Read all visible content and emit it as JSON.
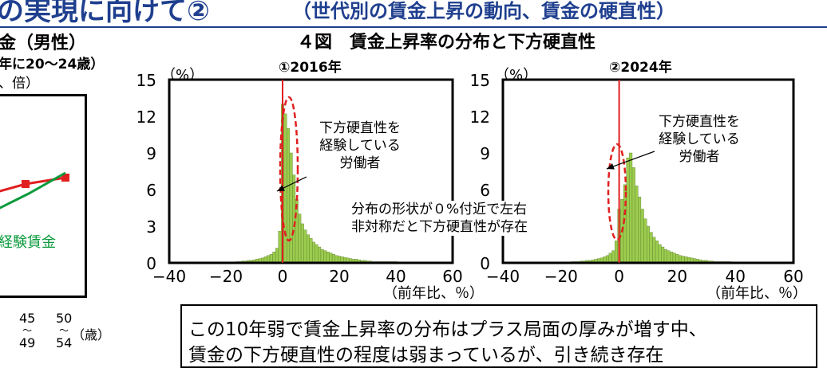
{
  "header": {
    "main_title": "の実現に向けて②",
    "sub_title": "（世代別の賃金上昇の動向、賃金の硬直性）"
  },
  "left_panel": {
    "title": "金（男性）",
    "note": "年に20～24歳）",
    "unit": "、倍）",
    "series_label": "経験賃金",
    "x_ticks": [
      {
        "top": "45",
        "mid": "～",
        "bottom": "49"
      },
      {
        "top": "50",
        "mid": "～",
        "bottom": "54"
      }
    ],
    "x_unit": "（歳）",
    "series": [
      {
        "color": "#e02020",
        "marker": "square"
      },
      {
        "color": "#0a9a3c",
        "marker": "none"
      }
    ]
  },
  "figure_title": "４図　賃金上昇率の分布と下方硬直性",
  "chart_data": [
    {
      "type": "bar",
      "title": "①2016年",
      "ylabel": "（%）",
      "xlabel": "（前年比、％）",
      "xlim": [
        -40,
        60
      ],
      "ylim": [
        0,
        15
      ],
      "x_ticks": [
        -40,
        -20,
        0,
        20,
        40,
        60
      ],
      "y_ticks": [
        0,
        3,
        6,
        9,
        12,
        15
      ],
      "bar_color": "#9ccc4e",
      "zero_line_color": "#e02020",
      "grid": false,
      "x": [
        -16,
        -15,
        -14,
        -13,
        -12,
        -11,
        -10,
        -9,
        -8,
        -7,
        -6,
        -5,
        -4,
        -3,
        -2,
        -1,
        0,
        1,
        2,
        3,
        4,
        5,
        6,
        7,
        8,
        9,
        10,
        11,
        12,
        13,
        14,
        15,
        16,
        17,
        18,
        19,
        20,
        21,
        22,
        23,
        24,
        25,
        26,
        27,
        28,
        29,
        30,
        31,
        32,
        33,
        34,
        35,
        36,
        37,
        38,
        39,
        40,
        41,
        42,
        43,
        44,
        45
      ],
      "values": [
        0.1,
        0.1,
        0.15,
        0.15,
        0.2,
        0.2,
        0.25,
        0.3,
        0.35,
        0.4,
        0.5,
        0.6,
        0.7,
        0.9,
        1.2,
        2.6,
        13.0,
        12.2,
        11.0,
        9.0,
        7.2,
        5.2,
        4.0,
        3.2,
        2.7,
        2.3,
        2.0,
        1.7,
        1.5,
        1.3,
        1.1,
        1.0,
        0.9,
        0.8,
        0.7,
        0.6,
        0.55,
        0.5,
        0.45,
        0.4,
        0.35,
        0.3,
        0.3,
        0.25,
        0.2,
        0.2,
        0.15,
        0.15,
        0.1,
        0.1,
        0.1,
        0.1,
        0.1,
        0.1,
        0.1,
        0.1,
        0.1,
        0.05,
        0.05,
        0.05,
        0.05,
        0.05
      ],
      "annotation": "下方硬直性を\n経験している\n労働者"
    },
    {
      "type": "bar",
      "title": "②2024年",
      "ylabel": "（%）",
      "xlabel": "（前年比、％）",
      "xlim": [
        -40,
        60
      ],
      "ylim": [
        0,
        15
      ],
      "x_ticks": [
        -40,
        -20,
        0,
        20,
        40,
        60
      ],
      "y_ticks": [
        0,
        3,
        6,
        9,
        12,
        15
      ],
      "bar_color": "#9ccc4e",
      "zero_line_color": "#e02020",
      "grid": false,
      "x": [
        -16,
        -15,
        -14,
        -13,
        -12,
        -11,
        -10,
        -9,
        -8,
        -7,
        -6,
        -5,
        -4,
        -3,
        -2,
        -1,
        0,
        1,
        2,
        3,
        4,
        5,
        6,
        7,
        8,
        9,
        10,
        11,
        12,
        13,
        14,
        15,
        16,
        17,
        18,
        19,
        20,
        21,
        22,
        23,
        24,
        25,
        26,
        27,
        28,
        29,
        30,
        31,
        32,
        33,
        34,
        35,
        36,
        37,
        38,
        39,
        40,
        41,
        42,
        43,
        44,
        45
      ],
      "values": [
        0.1,
        0.1,
        0.1,
        0.15,
        0.15,
        0.2,
        0.2,
        0.25,
        0.3,
        0.35,
        0.4,
        0.5,
        0.6,
        0.8,
        1.0,
        1.8,
        4.4,
        5.2,
        6.4,
        8.6,
        9.0,
        7.8,
        6.3,
        5.4,
        4.4,
        3.6,
        3.0,
        2.5,
        2.1,
        1.8,
        1.5,
        1.3,
        1.1,
        1.0,
        0.9,
        0.8,
        0.7,
        0.6,
        0.55,
        0.5,
        0.45,
        0.4,
        0.35,
        0.3,
        0.25,
        0.2,
        0.2,
        0.15,
        0.15,
        0.1,
        0.1,
        0.1,
        0.1,
        0.1,
        0.1,
        0.05,
        0.05,
        0.05,
        0.05,
        0.05,
        0.05,
        0.05
      ],
      "annotation": "下方硬直性を\n経験している\n労働者"
    }
  ],
  "middle_annotation": {
    "line1": "分布の形状が０%付近で左右",
    "line2": "非対称だと下方硬直性が存在"
  },
  "summary": {
    "line1": "この10年弱で賃金上昇率の分布はプラス局面の厚みが増す中、",
    "line2": "賃金の下方硬直性の程度は弱まっているが、引き続き存在"
  }
}
